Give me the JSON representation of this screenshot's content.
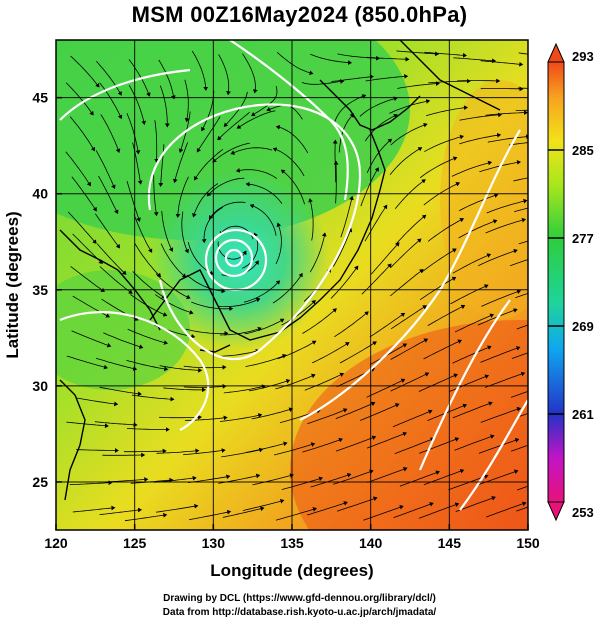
{
  "title": "MSM 00Z16May2024 (850.0hPa)",
  "map": {
    "projection": "lat-lon",
    "lon_range": [
      120,
      150
    ],
    "lat_range": [
      22.5,
      48
    ],
    "lon_ticks": [
      120,
      125,
      130,
      135,
      140,
      145,
      150
    ],
    "lat_ticks": [
      25,
      30,
      35,
      40,
      45
    ],
    "grid": true,
    "xlabel": "Longitude (degrees)",
    "ylabel": "Latitude  (degrees)",
    "field_range": [
      253,
      293
    ],
    "low_center": {
      "lon": 131.3,
      "lat": 37.3
    },
    "contours_white": true,
    "streamlines": true
  },
  "colorbar": {
    "min": 253,
    "max": 293,
    "labels": [
      "293",
      "285",
      "277",
      "269",
      "261",
      "253"
    ],
    "label_values": [
      293,
      285,
      277,
      269,
      261,
      253
    ],
    "colors": [
      "#e8127a",
      "#c214c6",
      "#2432c8",
      "#0ea8f0",
      "#1ed49c",
      "#2ece3c",
      "#a8e61c",
      "#f2e21a",
      "#f7a21e",
      "#f04a1a"
    ]
  },
  "credit": {
    "line1": "Drawing by DCL (https://www.gfd-dennou.org/library/dcl/)",
    "line2": "Data from http://database.rish.kyoto-u.ac.jp/arch/jmadata/"
  }
}
